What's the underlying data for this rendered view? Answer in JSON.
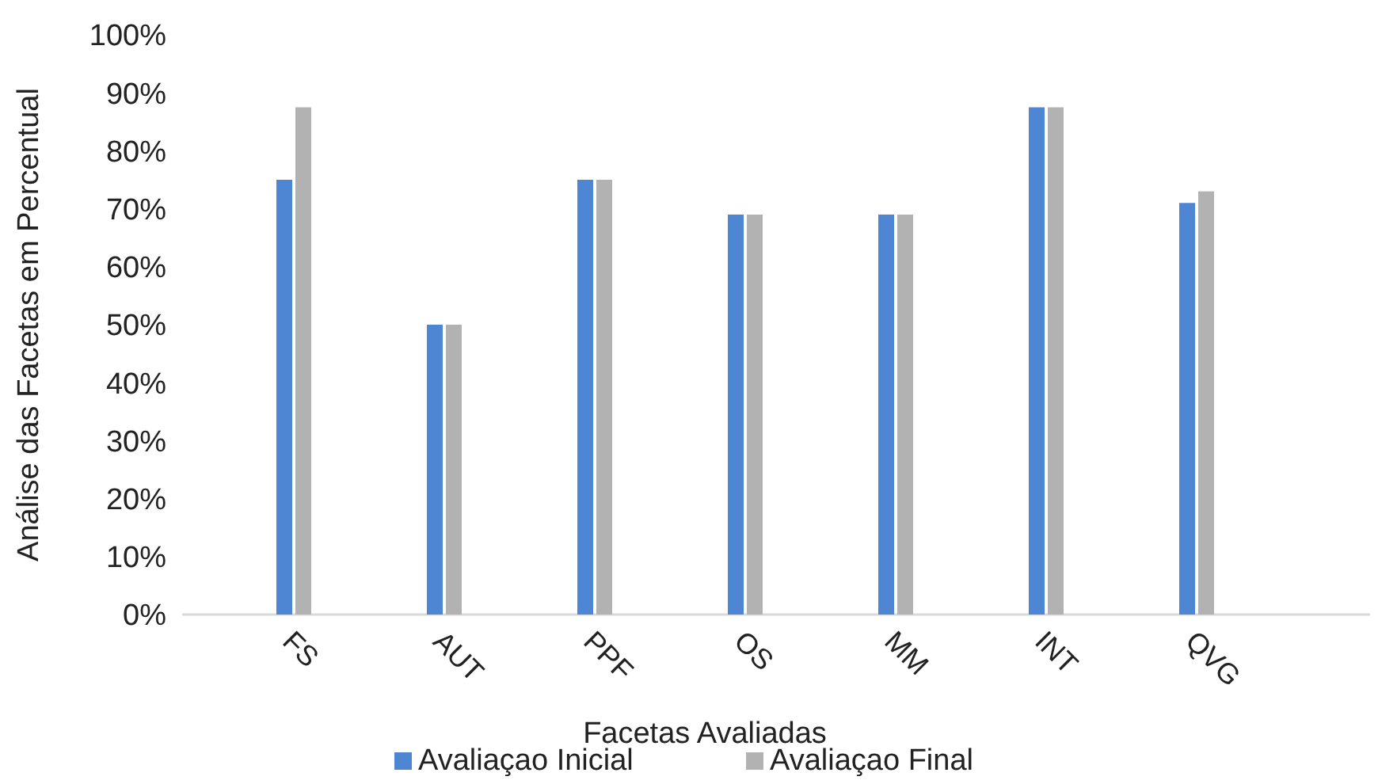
{
  "chart_data": {
    "type": "bar",
    "xlabel": "Facetas Avaliadas",
    "ylabel": "Análise das Facetas em Percentual",
    "categories": [
      "FS",
      "AUT",
      "PPF",
      "OS",
      "MM",
      "INT",
      "QVG"
    ],
    "series": [
      {
        "name": "Avaliaçao Inicial",
        "color": "#4f86d4",
        "values": [
          75,
          50,
          75,
          69,
          69,
          87.5,
          71
        ]
      },
      {
        "name": "Avaliaçao Final",
        "color": "#b2b2b2",
        "values": [
          87.5,
          50,
          75,
          69,
          69,
          87.5,
          73
        ]
      }
    ],
    "ylim": [
      0,
      100
    ],
    "yticks": [
      {
        "value": 0,
        "label": "0%"
      },
      {
        "value": 10,
        "label": "10%"
      },
      {
        "value": 20,
        "label": "20%"
      },
      {
        "value": 30,
        "label": "30%"
      },
      {
        "value": 40,
        "label": "40%"
      },
      {
        "value": 50,
        "label": "50%"
      },
      {
        "value": 60,
        "label": "60%"
      },
      {
        "value": 70,
        "label": "70%"
      },
      {
        "value": 80,
        "label": "80%"
      },
      {
        "value": 90,
        "label": "90%"
      },
      {
        "value": 100,
        "label": "100%"
      }
    ],
    "grid": false,
    "legend": "bottom"
  }
}
